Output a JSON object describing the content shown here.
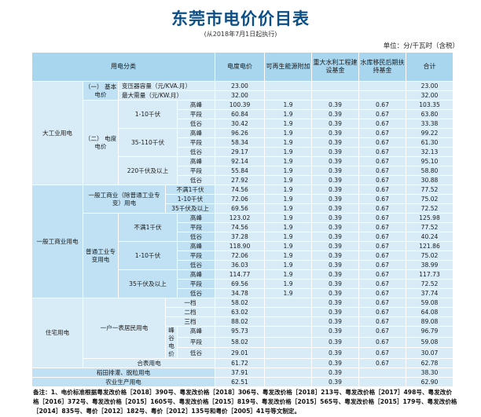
{
  "title": "东莞市电价价目表",
  "subtitle": "(从2018年7月1日起执行)",
  "unit_note": "单位：分/千瓦时（含税）",
  "headers": {
    "category": "用电分类",
    "price": "电度电价",
    "renewable": "可再生能源附加",
    "water": "重大水利工程建设基金",
    "reservoir": "水库移民后期扶持基金",
    "total": "合计"
  },
  "groups": {
    "large_industry": "大工业用电",
    "basic_price": "（一）\n基本电价",
    "energy_price": "（二）\n电度电价",
    "v1_10": "1-10千伏",
    "v35_110": "35-110千伏",
    "v220": "220千伏及以上",
    "general_industry": "一般工商业用电",
    "gen_ordinary": "一般工商业（除普通工业专变）用电",
    "gen_special": "普通工业专变用电",
    "lt1kv": "不满1千伏",
    "v35up": "35千伏及以上",
    "residential": "住宅用电",
    "one_meter": "一户一表居民用电",
    "tou_price": "峰谷电价",
    "combined": "合表用电",
    "rice": "稻田排灌、脱粒用电",
    "agri": "农业生产用电"
  },
  "rows": {
    "capacity": {
      "label": "变压器容量（元/KVA.月）",
      "price": "23.00",
      "renewable": "",
      "water": "",
      "reservoir": "",
      "total": "23.00"
    },
    "demand": {
      "label": "最大需量（元/KW.月）",
      "price": "32.00",
      "renewable": "",
      "water": "",
      "reservoir": "",
      "total": "32.00"
    },
    "li_1_10_peak": {
      "label": "高峰",
      "price": "100.39",
      "renewable": "1.9",
      "water": "0.39",
      "reservoir": "0.67",
      "total": "103.35"
    },
    "li_1_10_flat": {
      "label": "平段",
      "price": "60.84",
      "renewable": "1.9",
      "water": "0.39",
      "reservoir": "0.67",
      "total": "63.80"
    },
    "li_1_10_valley": {
      "label": "低谷",
      "price": "30.42",
      "renewable": "1.9",
      "water": "0.39",
      "reservoir": "0.67",
      "total": "33.38"
    },
    "li_35_peak": {
      "label": "高峰",
      "price": "96.26",
      "renewable": "1.9",
      "water": "0.39",
      "reservoir": "0.67",
      "total": "99.22"
    },
    "li_35_flat": {
      "label": "平段",
      "price": "58.34",
      "renewable": "1.9",
      "water": "0.39",
      "reservoir": "0.67",
      "total": "61.30"
    },
    "li_35_valley": {
      "label": "低谷",
      "price": "29.17",
      "renewable": "1.9",
      "water": "0.39",
      "reservoir": "0.67",
      "total": "32.13"
    },
    "li_220_peak": {
      "label": "高峰",
      "price": "92.14",
      "renewable": "1.9",
      "water": "0.39",
      "reservoir": "0.67",
      "total": "95.10"
    },
    "li_220_flat": {
      "label": "平段",
      "price": "55.84",
      "renewable": "1.9",
      "water": "0.39",
      "reservoir": "0.67",
      "total": "58.80"
    },
    "li_220_valley": {
      "label": "低谷",
      "price": "27.92",
      "renewable": "1.9",
      "water": "0.39",
      "reservoir": "0.67",
      "total": "30.88"
    },
    "go_lt1": {
      "label": "不满1千伏",
      "price": "74.56",
      "renewable": "1.9",
      "water": "0.39",
      "reservoir": "0.67",
      "total": "77.52"
    },
    "go_1_10": {
      "label": "1-10千伏",
      "price": "72.06",
      "renewable": "1.9",
      "water": "0.39",
      "reservoir": "0.67",
      "total": "75.02"
    },
    "go_35": {
      "label": "35千伏及以上",
      "price": "69.56",
      "renewable": "1.9",
      "water": "0.39",
      "reservoir": "0.67",
      "total": "72.52"
    },
    "gs_lt1_peak": {
      "label": "高峰",
      "price": "123.02",
      "renewable": "1.9",
      "water": "0.39",
      "reservoir": "0.67",
      "total": "125.98"
    },
    "gs_lt1_flat": {
      "label": "平段",
      "price": "74.56",
      "renewable": "1.9",
      "water": "0.39",
      "reservoir": "0.67",
      "total": "77.52"
    },
    "gs_lt1_valley": {
      "label": "低谷",
      "price": "37.28",
      "renewable": "1.9",
      "water": "0.39",
      "reservoir": "0.67",
      "total": "40.24"
    },
    "gs_1_10_peak": {
      "label": "高峰",
      "price": "118.90",
      "renewable": "1.9",
      "water": "0.39",
      "reservoir": "0.67",
      "total": "121.86"
    },
    "gs_1_10_flat": {
      "label": "平段",
      "price": "72.06",
      "renewable": "1.9",
      "water": "0.39",
      "reservoir": "0.67",
      "total": "75.02"
    },
    "gs_1_10_valley": {
      "label": "低谷",
      "price": "36.03",
      "renewable": "1.9",
      "water": "0.39",
      "reservoir": "0.67",
      "total": "38.99"
    },
    "gs_35_peak": {
      "label": "高峰",
      "price": "114.77",
      "renewable": "1.9",
      "water": "0.39",
      "reservoir": "0.67",
      "total": "117.73"
    },
    "gs_35_flat": {
      "label": "平段",
      "price": "69.56",
      "renewable": "1.9",
      "water": "0.39",
      "reservoir": "0.67",
      "total": "72.52"
    },
    "gs_35_valley": {
      "label": "低谷",
      "price": "34.78",
      "renewable": "1.9",
      "water": "0.39",
      "reservoir": "0.67",
      "total": "37.74"
    },
    "res_tier1": {
      "label": "一档",
      "price": "58.02",
      "renewable": "",
      "water": "0.39",
      "reservoir": "0.67",
      "total": "59.08"
    },
    "res_tier2": {
      "label": "二档",
      "price": "63.02",
      "renewable": "",
      "water": "0.39",
      "reservoir": "0.67",
      "total": "64.08"
    },
    "res_tier3": {
      "label": "三档",
      "price": "88.02",
      "renewable": "",
      "water": "0.39",
      "reservoir": "0.67",
      "total": "89.08"
    },
    "res_peak": {
      "label": "高峰",
      "price": "95.73",
      "renewable": "",
      "water": "0.39",
      "reservoir": "0.67",
      "total": "96.79"
    },
    "res_flat": {
      "label": "平段",
      "price": "58.02",
      "renewable": "",
      "water": "0.39",
      "reservoir": "0.67",
      "total": "59.08"
    },
    "res_valley": {
      "label": "低谷",
      "price": "29.01",
      "renewable": "",
      "water": "0.39",
      "reservoir": "0.67",
      "total": "30.07"
    },
    "res_combined": {
      "label": "",
      "price": "61.72",
      "renewable": "",
      "water": "0.39",
      "reservoir": "0.67",
      "total": "62.78"
    },
    "rice": {
      "label": "",
      "price": "37.91",
      "renewable": "",
      "water": "0.39",
      "reservoir": "",
      "total": "38.30"
    },
    "agri": {
      "label": "",
      "price": "62.51",
      "renewable": "",
      "water": "0.39",
      "reservoir": "",
      "total": "62.90"
    }
  },
  "notes": "备注：1、电价标准根据粤发改价格［2018］390号、粤发改价格［2018］306号、粤发改价格［2018］213号、粤发改价格［2017］498号、粤发改价格［2016］372号、粤发改价格［2015］1605号、粤发改价格［2015］819号、粤发改价格［2015］565号、粤发改价格［2015］179号、粤发改价格［2014］835号、粤价［2012］182号、粤价［2012］135号和粤价［2005］41号等文制定。"
}
